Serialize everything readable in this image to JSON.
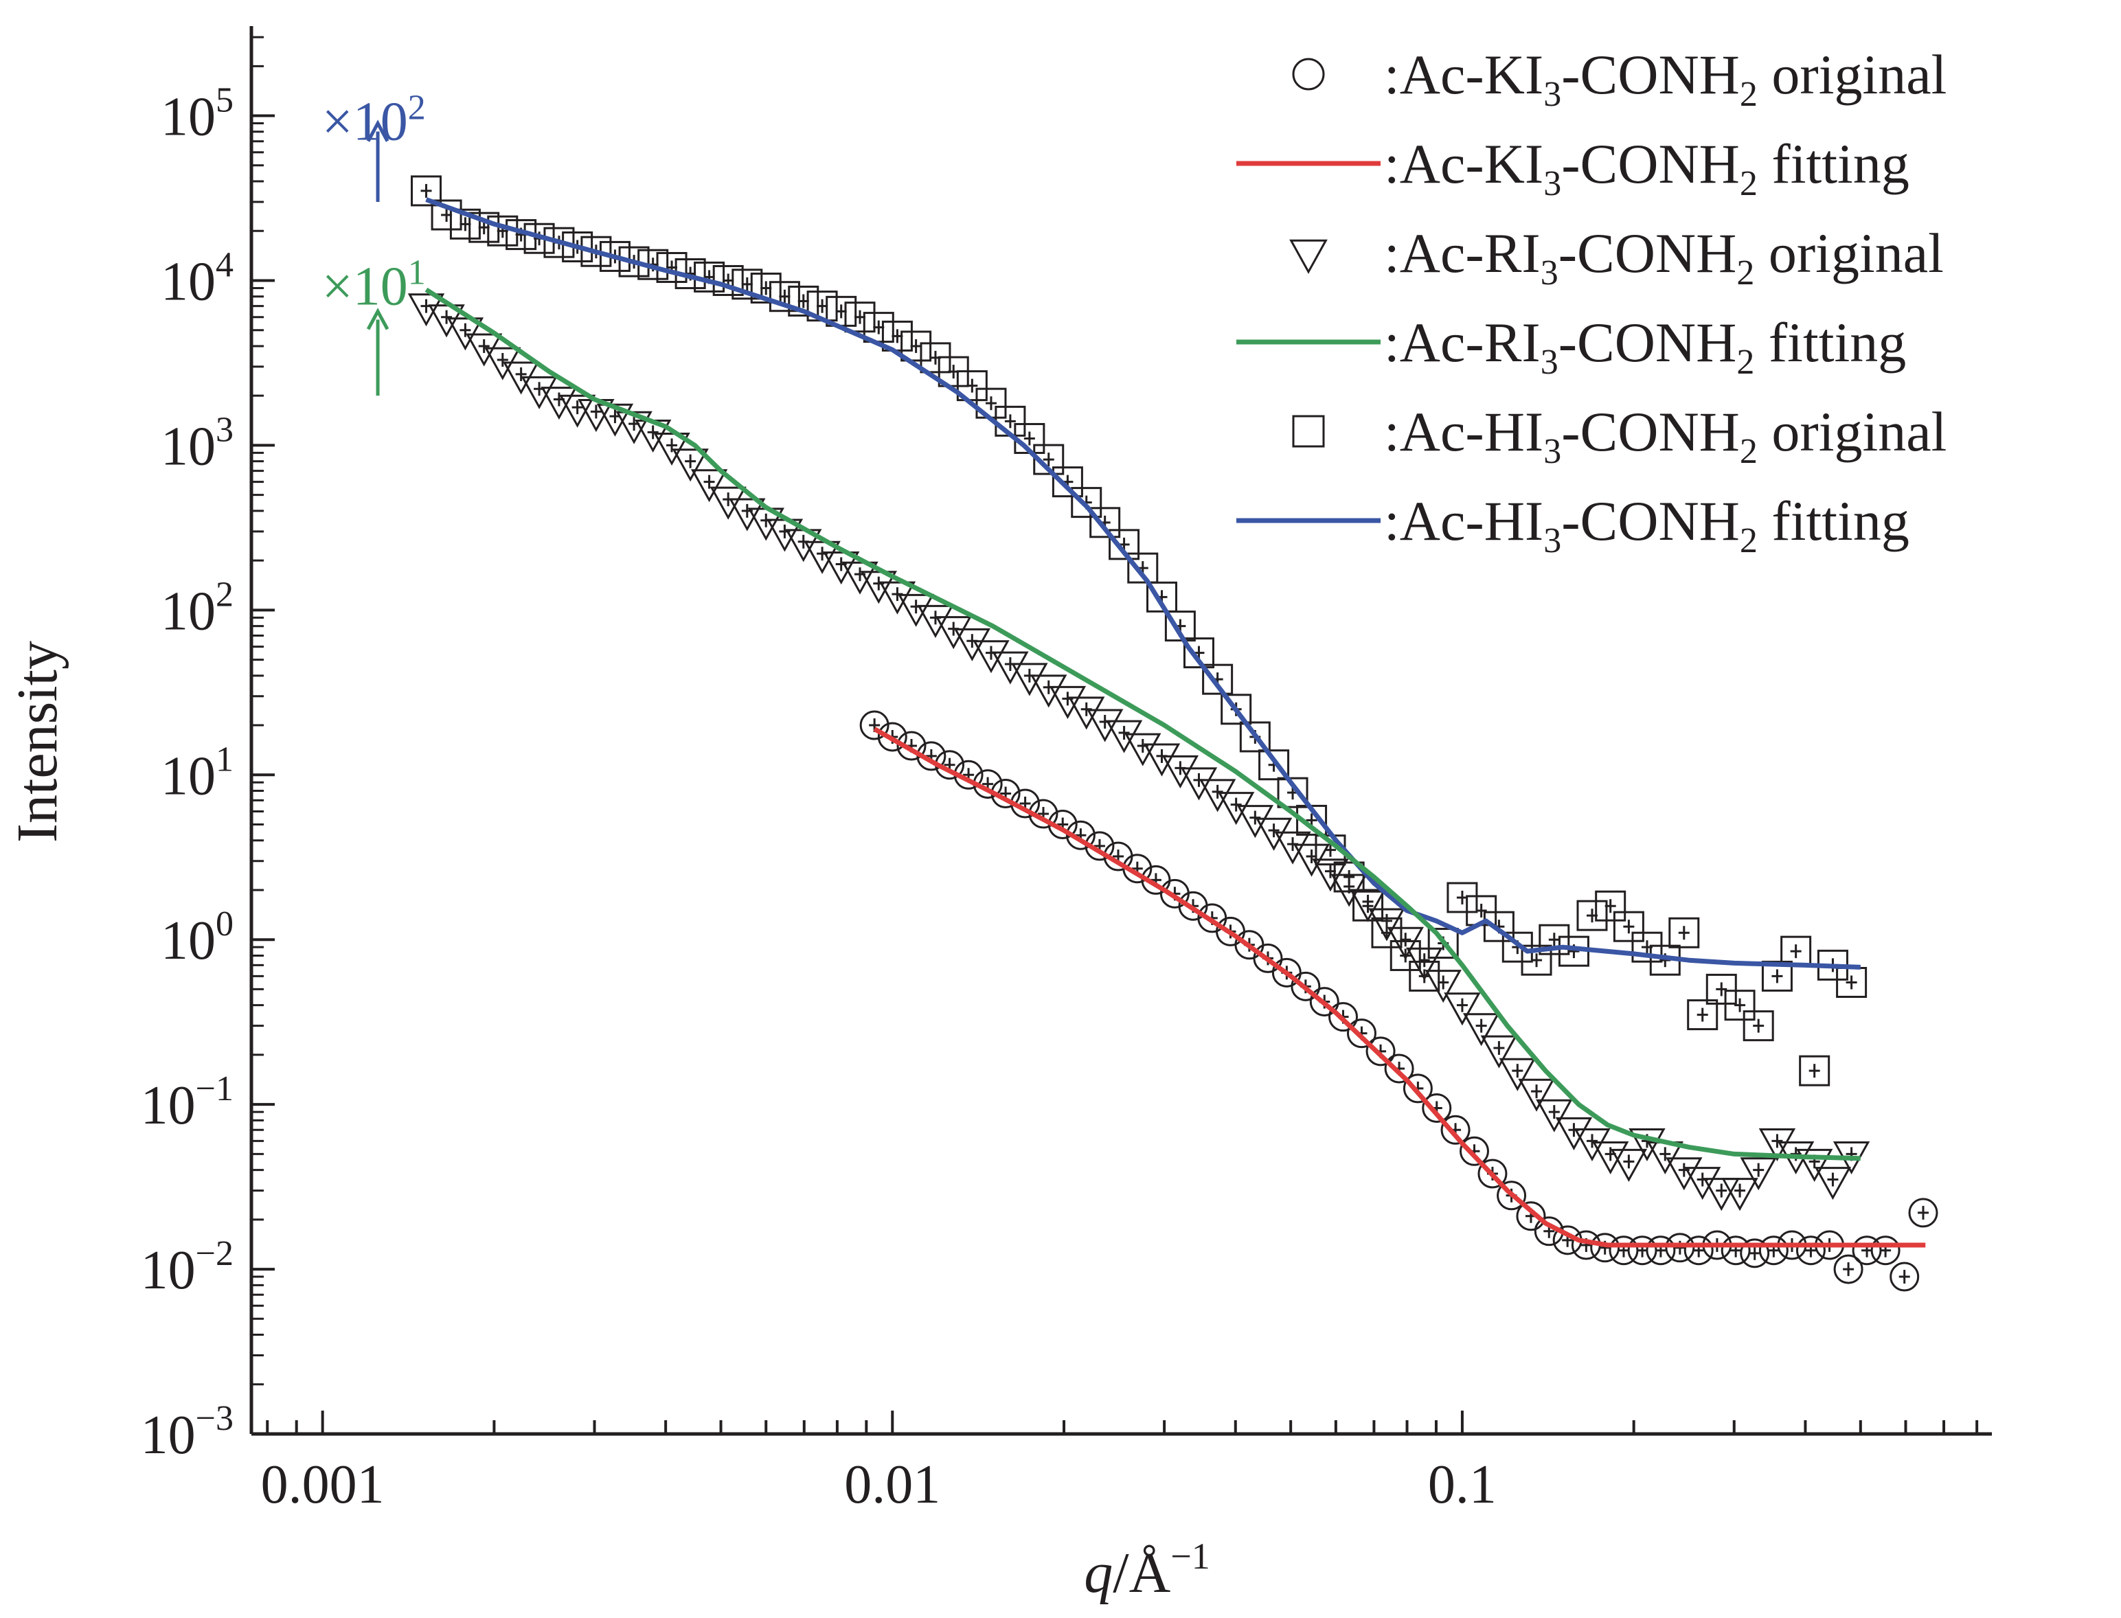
{
  "chart_data": {
    "type": "scatter",
    "x_scale": "log",
    "y_scale": "log",
    "xlim": [
      0.00075,
      0.85
    ],
    "ylim": [
      0.001,
      350000
    ],
    "xlabel_italic": "q",
    "xlabel_rest": "/Å",
    "xlabel_sup": "−1",
    "ylabel": "Intensity",
    "x_ticks": [
      {
        "value": 0.001,
        "label": "0.001"
      },
      {
        "value": 0.01,
        "label": "0.01"
      },
      {
        "value": 0.1,
        "label": "0.1"
      }
    ],
    "y_ticks": [
      {
        "value": 0.001,
        "base": "10",
        "exp": "−3"
      },
      {
        "value": 0.01,
        "base": "10",
        "exp": "−2"
      },
      {
        "value": 0.1,
        "base": "10",
        "exp": "−1"
      },
      {
        "value": 1,
        "base": "10",
        "exp": "0"
      },
      {
        "value": 10,
        "base": "10",
        "exp": "1"
      },
      {
        "value": 100,
        "base": "10",
        "exp": "2"
      },
      {
        "value": 1000,
        "base": "10",
        "exp": "3"
      },
      {
        "value": 10000,
        "base": "10",
        "exp": "4"
      },
      {
        "value": 100000,
        "base": "10",
        "exp": "5"
      }
    ],
    "annotations": [
      {
        "base": "×10",
        "exp": "2",
        "color": "#3a56a4",
        "label_q": 0.00123,
        "label_i": 85000,
        "arrow_q": 0.00125,
        "arrow_from": 30000,
        "arrow_to": 90000
      },
      {
        "base": "×10",
        "exp": "1",
        "color": "#3d9b5a",
        "label_q": 0.00123,
        "label_i": 8500,
        "arrow_q": 0.00125,
        "arrow_from": 2000,
        "arrow_to": 6500
      }
    ],
    "legend": {
      "position": "top-right",
      "entries": [
        {
          "marker": "circle",
          "name_pre": ":Ac-KI",
          "sub1": "3",
          "name_mid": "-CONH",
          "sub2": "2",
          "name_post": " original",
          "color": "#231f20"
        },
        {
          "marker": "line",
          "name_pre": ":Ac-KI",
          "sub1": "3",
          "name_mid": "-CONH",
          "sub2": "2",
          "name_post": " fitting",
          "color": "#e03c3c"
        },
        {
          "marker": "triangle",
          "name_pre": ":Ac-RI",
          "sub1": "3",
          "name_mid": "-CONH",
          "sub2": "2",
          "name_post": " original",
          "color": "#231f20"
        },
        {
          "marker": "line",
          "name_pre": ":Ac-RI",
          "sub1": "3",
          "name_mid": "-CONH",
          "sub2": "2",
          "name_post": " fitting",
          "color": "#3d9b5a"
        },
        {
          "marker": "square",
          "name_pre": ":Ac-HI",
          "sub1": "3",
          "name_mid": "-CONH",
          "sub2": "2",
          "name_post": " original",
          "color": "#231f20"
        },
        {
          "marker": "line",
          "name_pre": ":Ac-HI",
          "sub1": "3",
          "name_mid": "-CONH",
          "sub2": "2",
          "name_post": " fitting",
          "color": "#3a56a4"
        }
      ]
    },
    "series": [
      {
        "name": ":Ac-HI3-CONH2 original",
        "marker": "square",
        "x": [
          0.00152,
          0.00165,
          0.00178,
          0.00192,
          0.00207,
          0.00223,
          0.0024,
          0.0026,
          0.0028,
          0.00302,
          0.00326,
          0.00352,
          0.0038,
          0.0041,
          0.00442,
          0.00477,
          0.00515,
          0.00556,
          0.006,
          0.00647,
          0.00698,
          0.00753,
          0.00813,
          0.00877,
          0.00946,
          0.0102,
          0.011,
          0.0119,
          0.0128,
          0.0138,
          0.0149,
          0.0161,
          0.0174,
          0.0188,
          0.0203,
          0.0219,
          0.0236,
          0.0255,
          0.0275,
          0.0297,
          0.032,
          0.0345,
          0.0372,
          0.0401,
          0.0433,
          0.0467,
          0.0504,
          0.0544,
          0.0587,
          0.0633,
          0.0683,
          0.0737,
          0.0795,
          0.0858,
          0.0926,
          0.1,
          0.108,
          0.116,
          0.125,
          0.135,
          0.145,
          0.157,
          0.169,
          0.182,
          0.196,
          0.211,
          0.227,
          0.245,
          0.264,
          0.285,
          0.307,
          0.331,
          0.357,
          0.385,
          0.415,
          0.447,
          0.482
        ],
        "y": [
          35000,
          25000,
          22000,
          21000,
          20000,
          19000,
          18000,
          17000,
          16000,
          15000,
          14000,
          13000,
          12500,
          12000,
          11000,
          10500,
          10000,
          9500,
          9000,
          8000,
          7500,
          7000,
          6500,
          6000,
          5200,
          4600,
          4000,
          3400,
          2800,
          2300,
          1800,
          1400,
          1100,
          820,
          600,
          450,
          340,
          250,
          180,
          120,
          80,
          55,
          38,
          25,
          17,
          11.5,
          7.8,
          5.3,
          3.5,
          2.4,
          1.6,
          1.1,
          0.8,
          0.6,
          0.95,
          1.8,
          1.5,
          1.2,
          0.9,
          0.75,
          1.0,
          0.85,
          1.4,
          1.6,
          1.2,
          0.9,
          0.75,
          1.1,
          0.35,
          0.5,
          0.4,
          0.3,
          0.6,
          0.85,
          0.16,
          0.7,
          0.55
        ]
      },
      {
        "name": ":Ac-HI3-CONH2 fitting",
        "marker": "line",
        "x": [
          0.00152,
          0.002,
          0.003,
          0.004,
          0.005,
          0.007,
          0.01,
          0.013,
          0.017,
          0.022,
          0.028,
          0.033,
          0.04,
          0.05,
          0.06,
          0.07,
          0.08,
          0.09,
          0.1,
          0.11,
          0.12,
          0.13,
          0.15,
          0.2,
          0.25,
          0.3,
          0.4,
          0.5
        ],
        "y": [
          31000,
          22000,
          15000,
          11500,
          9500,
          6500,
          3800,
          2100,
          1000,
          420,
          150,
          60,
          25,
          9,
          4,
          2.2,
          1.5,
          1.3,
          1.1,
          1.3,
          1.05,
          0.85,
          0.9,
          0.82,
          0.75,
          0.72,
          0.7,
          0.68
        ]
      },
      {
        "name": ":Ac-RI3-CONH2 original",
        "marker": "triangle",
        "x": [
          0.00152,
          0.00165,
          0.00178,
          0.00192,
          0.00207,
          0.00223,
          0.0024,
          0.0026,
          0.0028,
          0.00302,
          0.00326,
          0.00352,
          0.0038,
          0.0041,
          0.00442,
          0.00477,
          0.00515,
          0.00556,
          0.006,
          0.00647,
          0.00698,
          0.00753,
          0.00813,
          0.00877,
          0.00946,
          0.0102,
          0.011,
          0.0119,
          0.0128,
          0.0138,
          0.0149,
          0.0161,
          0.0174,
          0.0188,
          0.0203,
          0.0219,
          0.0236,
          0.0255,
          0.0275,
          0.0297,
          0.032,
          0.0345,
          0.0372,
          0.0401,
          0.0433,
          0.0467,
          0.0504,
          0.0544,
          0.0587,
          0.0633,
          0.0683,
          0.0737,
          0.0795,
          0.0858,
          0.0926,
          0.1,
          0.108,
          0.116,
          0.125,
          0.135,
          0.145,
          0.157,
          0.169,
          0.182,
          0.196,
          0.211,
          0.227,
          0.245,
          0.264,
          0.285,
          0.307,
          0.331,
          0.357,
          0.385,
          0.415,
          0.447,
          0.482
        ],
        "y": [
          7000,
          6000,
          5000,
          4000,
          3300,
          2700,
          2200,
          1900,
          1700,
          1600,
          1500,
          1350,
          1200,
          1000,
          800,
          600,
          470,
          400,
          350,
          300,
          260,
          220,
          190,
          165,
          145,
          125,
          105,
          90,
          77,
          65,
          55,
          47,
          40,
          34,
          29,
          25,
          21,
          18,
          15,
          13,
          11,
          9.3,
          7.9,
          6.6,
          5.5,
          4.6,
          3.8,
          3.2,
          2.6,
          2.1,
          1.7,
          1.3,
          1.0,
          0.75,
          0.55,
          0.4,
          0.3,
          0.22,
          0.16,
          0.12,
          0.09,
          0.07,
          0.06,
          0.05,
          0.045,
          0.06,
          0.05,
          0.04,
          0.035,
          0.03,
          0.03,
          0.04,
          0.06,
          0.05,
          0.045,
          0.035,
          0.05
        ]
      },
      {
        "name": ":Ac-RI3-CONH2 fitting",
        "marker": "line",
        "x": [
          0.00152,
          0.002,
          0.0025,
          0.003,
          0.0035,
          0.004,
          0.0045,
          0.005,
          0.006,
          0.008,
          0.01,
          0.015,
          0.02,
          0.03,
          0.04,
          0.05,
          0.06,
          0.07,
          0.08,
          0.09,
          0.1,
          0.12,
          0.14,
          0.16,
          0.18,
          0.2,
          0.25,
          0.3,
          0.4,
          0.5
        ],
        "y": [
          8800,
          4800,
          2800,
          1900,
          1550,
          1300,
          1000,
          700,
          420,
          240,
          160,
          80,
          45,
          20,
          10.5,
          6,
          3.7,
          2.4,
          1.6,
          1.1,
          0.7,
          0.3,
          0.16,
          0.1,
          0.075,
          0.065,
          0.055,
          0.05,
          0.048,
          0.047
        ]
      },
      {
        "name": ":Ac-KI3-CONH2 original",
        "marker": "circle",
        "x": [
          0.0093,
          0.01,
          0.0108,
          0.0117,
          0.0126,
          0.0136,
          0.0147,
          0.0158,
          0.0171,
          0.0184,
          0.0199,
          0.0214,
          0.0231,
          0.0249,
          0.0269,
          0.029,
          0.0313,
          0.0337,
          0.0364,
          0.0392,
          0.0423,
          0.0456,
          0.0492,
          0.0531,
          0.0573,
          0.0618,
          0.0666,
          0.0719,
          0.0775,
          0.0836,
          0.0902,
          0.0973,
          0.105,
          0.113,
          0.122,
          0.132,
          0.142,
          0.153,
          0.165,
          0.178,
          0.192,
          0.207,
          0.223,
          0.241,
          0.26,
          0.28,
          0.302,
          0.326,
          0.352,
          0.379,
          0.409,
          0.441,
          0.476,
          0.513,
          0.553,
          0.597,
          0.644
        ],
        "y": [
          20,
          17,
          15,
          13,
          11.5,
          10,
          8.8,
          7.7,
          6.7,
          5.8,
          5.0,
          4.3,
          3.7,
          3.2,
          2.7,
          2.3,
          1.9,
          1.6,
          1.35,
          1.12,
          0.93,
          0.77,
          0.63,
          0.52,
          0.42,
          0.34,
          0.27,
          0.21,
          0.165,
          0.125,
          0.095,
          0.07,
          0.052,
          0.038,
          0.028,
          0.021,
          0.017,
          0.015,
          0.014,
          0.0135,
          0.013,
          0.013,
          0.013,
          0.0135,
          0.013,
          0.014,
          0.013,
          0.0125,
          0.013,
          0.014,
          0.013,
          0.014,
          0.01,
          0.013,
          0.013,
          0.009,
          0.022
        ]
      },
      {
        "name": ":Ac-KI3-CONH2 fitting",
        "marker": "line",
        "x": [
          0.0093,
          0.012,
          0.015,
          0.02,
          0.03,
          0.04,
          0.05,
          0.06,
          0.08,
          0.1,
          0.12,
          0.14,
          0.16,
          0.18,
          0.2,
          0.25,
          0.3,
          0.4,
          0.5,
          0.65
        ],
        "y": [
          19,
          11.5,
          7.8,
          4.6,
          2.0,
          1.05,
          0.6,
          0.36,
          0.14,
          0.058,
          0.03,
          0.019,
          0.015,
          0.014,
          0.014,
          0.014,
          0.014,
          0.014,
          0.014,
          0.014
        ]
      }
    ]
  }
}
